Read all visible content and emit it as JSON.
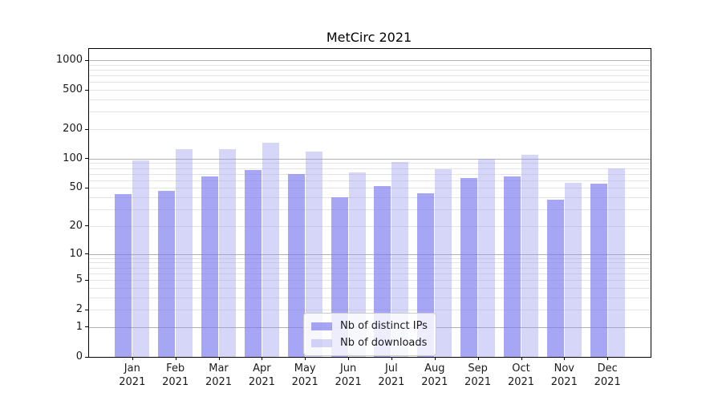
{
  "chart_data": {
    "type": "bar",
    "title": "MetCirc 2021",
    "categories": [
      "Jan 2021",
      "Feb 2021",
      "Mar 2021",
      "Apr 2021",
      "May 2021",
      "Jun 2021",
      "Jul 2021",
      "Aug 2021",
      "Sep 2021",
      "Oct 2021",
      "Nov 2021",
      "Dec 2021"
    ],
    "series": [
      {
        "name": "Nb of distinct IPs",
        "color": "rgba(119,119,238,0.65)",
        "values": [
          43,
          47,
          66,
          77,
          70,
          40,
          52,
          44,
          63,
          66,
          38,
          56
        ]
      },
      {
        "name": "Nb of downloads",
        "color": "rgba(153,153,238,0.40)",
        "values": [
          97,
          125,
          125,
          146,
          118,
          73,
          93,
          78,
          100,
          110,
          57,
          80
        ]
      }
    ],
    "xlabel": "",
    "ylabel": "",
    "yscale": "log1p",
    "ylim": [
      0,
      1000
    ],
    "y_tick_labels": [
      0,
      1,
      2,
      5,
      10,
      20,
      50,
      100,
      200,
      500,
      1000
    ],
    "y_major_gridlines": [
      1,
      10,
      100,
      1000
    ],
    "y_minor_gridlines": [
      2,
      3,
      4,
      5,
      6,
      7,
      8,
      9,
      20,
      30,
      40,
      50,
      60,
      70,
      80,
      90,
      200,
      300,
      400,
      500,
      600,
      700,
      800,
      900
    ],
    "grid": true,
    "legend": {
      "position": "lower center",
      "entries": [
        "Nb of distinct IPs",
        "Nb of downloads"
      ]
    }
  },
  "colors": {
    "bar_distinct_ips": "rgba(119,119,238,0.65)",
    "bar_downloads": "rgba(153,153,238,0.40)",
    "grid_major": "#b0b0b0",
    "grid_minor": "#e4e4e4",
    "spine": "#000000",
    "text": "#1a1a1a",
    "legend_border": "#cccccc"
  }
}
